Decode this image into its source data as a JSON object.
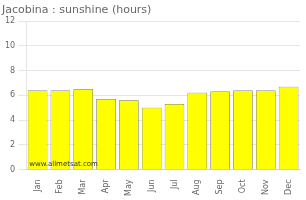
{
  "chart_data": {
    "type": "bar",
    "title": "Jacobina : sunshine (hours)",
    "categories": [
      "Jan",
      "Feb",
      "Mar",
      "Apr",
      "May",
      "Jun",
      "Jul",
      "Aug",
      "Sep",
      "Oct",
      "Nov",
      "Dec"
    ],
    "values": [
      6.4,
      6.4,
      6.5,
      5.7,
      5.6,
      5.0,
      5.3,
      6.2,
      6.3,
      6.4,
      6.4,
      6.7
    ],
    "color": "#ffff00",
    "ylim": [
      0,
      12
    ],
    "yticks": [
      0,
      2,
      4,
      6,
      8,
      10,
      12
    ],
    "grid": true,
    "annotation": "www.allmetsat.com"
  }
}
